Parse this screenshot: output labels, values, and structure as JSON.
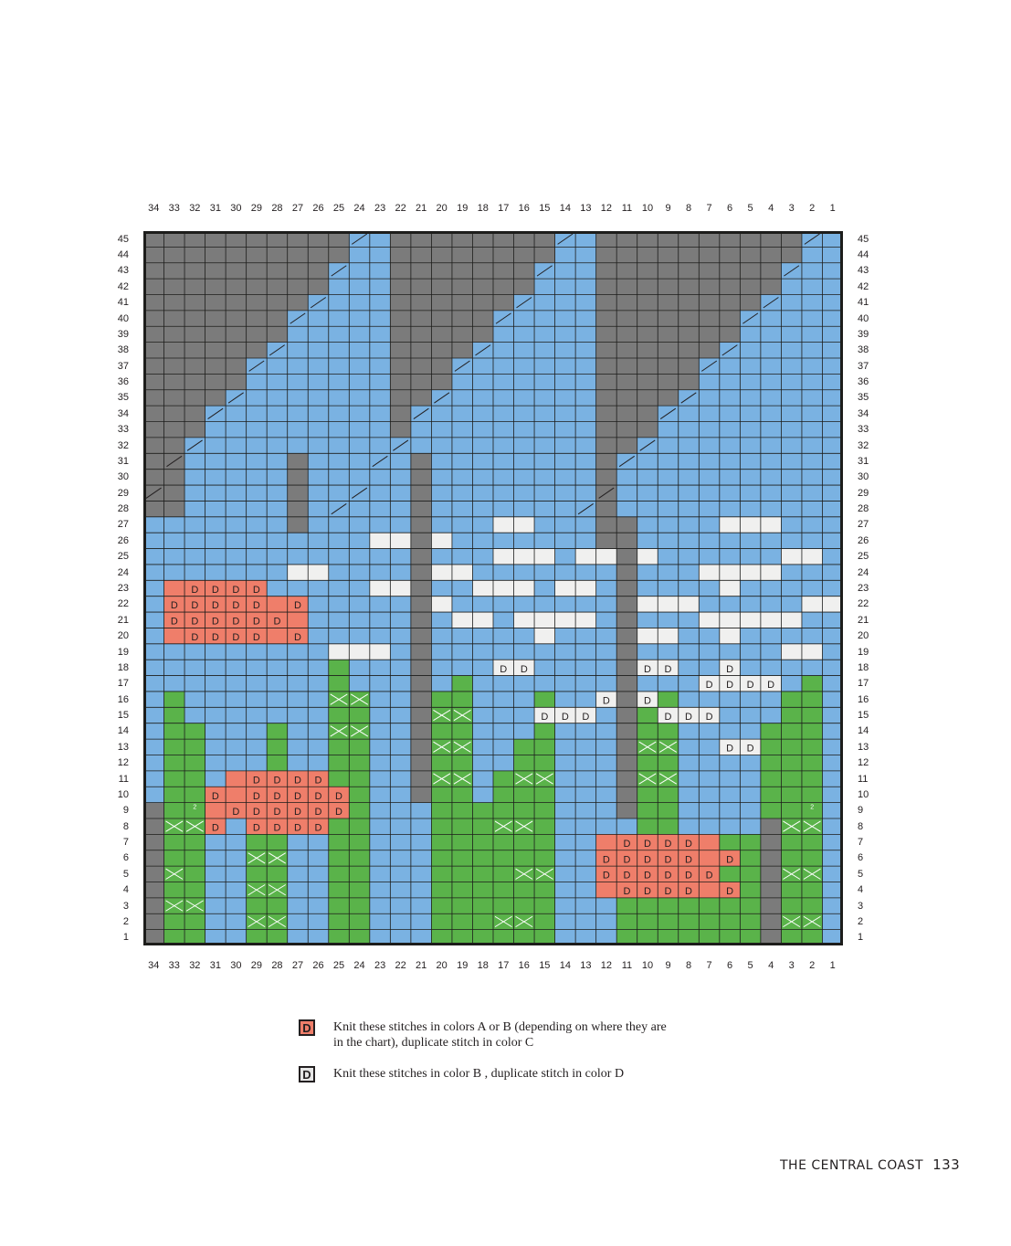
{
  "chart": {
    "column_labels": [
      "34",
      "33",
      "32",
      "31",
      "30",
      "29",
      "28",
      "27",
      "26",
      "25",
      "24",
      "23",
      "22",
      "21",
      "20",
      "19",
      "18",
      "17",
      "16",
      "15",
      "14",
      "13",
      "12",
      "11",
      "10",
      "9",
      "8",
      "7",
      "6",
      "5",
      "4",
      "3",
      "2",
      "1"
    ],
    "row_labels": [
      "45",
      "44",
      "43",
      "42",
      "41",
      "40",
      "39",
      "38",
      "37",
      "36",
      "35",
      "34",
      "33",
      "32",
      "31",
      "30",
      "29",
      "28",
      "27",
      "26",
      "25",
      "24",
      "23",
      "22",
      "21",
      "20",
      "19",
      "18",
      "17",
      "16",
      "15",
      "14",
      "13",
      "12",
      "11",
      "10",
      "9",
      "8",
      "7",
      "6",
      "5",
      "4",
      "3",
      "2",
      "1"
    ],
    "stitch_symbol": "D",
    "cable_note": "2",
    "colors": {
      "sky": "#7ab2e2",
      "tree": "#7b7b7b",
      "grass": "#5ab34a",
      "cloud": "#f0f0ef",
      "flower": "#ef7e6a",
      "grid": "#1d1d1b"
    }
  },
  "legend": [
    {
      "symbol": "D",
      "color": "#ef7e6a",
      "text_line1": "Knit these stitches in colors A or B (depending on where they are",
      "text_line2": "in the chart), duplicate stitch in color C"
    },
    {
      "symbol": "D",
      "color": "#e6e6e6",
      "text_line1": "Knit these stitches in color B , duplicate stitch in color D",
      "text_line2": ""
    }
  ],
  "footer": {
    "title": "THE CENTRAL COAST",
    "page": "133"
  }
}
